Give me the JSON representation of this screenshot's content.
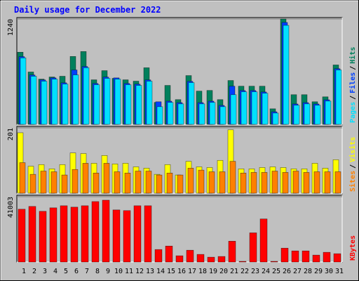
{
  "title": "Daily usage for December 2022",
  "legend_separator": "/",
  "chart_data": [
    {
      "type": "bar",
      "ylim": [
        0,
        1240
      ],
      "yticks": [
        1240
      ],
      "series": [
        {
          "name": "Hits",
          "color": "#00805c",
          "values": [
            849,
            616,
            532,
            557,
            566,
            799,
            857,
            524,
            632,
            541,
            524,
            508,
            666,
            258,
            458,
            291,
            574,
            391,
            399,
            291,
            516,
            449,
            449,
            449,
            183,
            1240,
            349,
            349,
            266,
            324,
            699
          ]
        },
        {
          "name": "Files",
          "color": "#0040ff",
          "values": [
            797,
            581,
            523,
            547,
            489,
            640,
            681,
            481,
            556,
            547,
            481,
            473,
            523,
            266,
            273,
            256,
            506,
            256,
            273,
            223,
            449,
            398,
            398,
            381,
            148,
            1199,
            240,
            256,
            240,
            289,
            655
          ]
        },
        {
          "name": "Pages",
          "color": "#00e0ff",
          "values": [
            782,
            566,
            508,
            532,
            474,
            582,
            666,
            466,
            541,
            532,
            466,
            458,
            508,
            208,
            258,
            241,
            491,
            241,
            258,
            208,
            349,
            383,
            383,
            366,
            133,
            1165,
            225,
            241,
            225,
            274,
            640
          ]
        }
      ]
    },
    {
      "type": "bar",
      "ylim": [
        0,
        201
      ],
      "yticks": [
        201
      ],
      "series": [
        {
          "name": "Visits",
          "color": "#ffff00",
          "values": [
            186,
            83,
            88,
            75,
            88,
            124,
            122,
            92,
            116,
            90,
            92,
            81,
            77,
            58,
            88,
            56,
            98,
            81,
            79,
            101,
            195,
            75,
            75,
            79,
            81,
            79,
            75,
            75,
            92,
            77,
            103
          ]
        },
        {
          "name": "Sites",
          "color": "#ff8000",
          "values": [
            94,
            58,
            68,
            66,
            56,
            73,
            92,
            62,
            92,
            66,
            62,
            68,
            68,
            56,
            62,
            56,
            77,
            71,
            66,
            66,
            98,
            62,
            64,
            64,
            68,
            64,
            68,
            64,
            66,
            66,
            66
          ]
        }
      ]
    },
    {
      "type": "bar",
      "ylim": [
        0,
        41003
      ],
      "yticks": [
        41003
      ],
      "categories": [
        "1",
        "2",
        "3",
        "4",
        "5",
        "6",
        "7",
        "8",
        "9",
        "10",
        "11",
        "12",
        "13",
        "14",
        "15",
        "16",
        "17",
        "18",
        "19",
        "20",
        "21",
        "22",
        "23",
        "24",
        "25",
        "26",
        "27",
        "28",
        "29",
        "30",
        "31"
      ],
      "category_colors": [
        "#000000",
        "#000000",
        "#008040",
        "#008040",
        "#000000",
        "#000000",
        "#000000",
        "#000000",
        "#000000",
        "#008040",
        "#008040",
        "#000000",
        "#000000",
        "#000000",
        "#000000",
        "#000000",
        "#008040",
        "#008040",
        "#000000",
        "#000000",
        "#000000",
        "#000000",
        "#000000",
        "#008040",
        "#008040",
        "#000000",
        "#000000",
        "#000000",
        "#000000",
        "#000000",
        "#008040"
      ],
      "series": [
        {
          "name": "KBytes",
          "color": "#ff0000",
          "values": [
            33150,
            34900,
            31840,
            34020,
            35330,
            34460,
            35330,
            37950,
            38820,
            32710,
            32280,
            35330,
            35330,
            7850,
            10030,
            3930,
            7420,
            4800,
            3050,
            3490,
            13090,
            436,
            18320,
            27040,
            436,
            8720,
            6980,
            6980,
            4360,
            6110,
            5230
          ]
        }
      ]
    }
  ]
}
